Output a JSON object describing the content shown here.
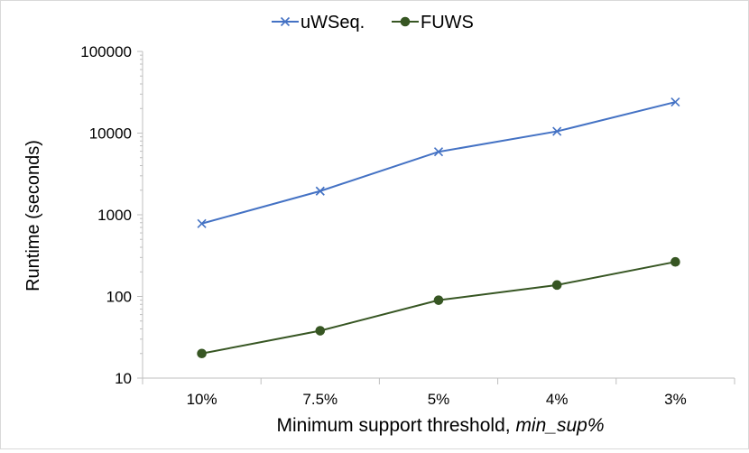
{
  "chart_data": {
    "type": "line",
    "title": "",
    "xlabel_prefix": "Minimum support threshold, ",
    "xlabel_italic": "min_sup%",
    "ylabel": "Runtime (seconds)",
    "yscale": "log",
    "ylim": [
      10,
      100000
    ],
    "yticks": [
      10,
      100,
      1000,
      10000,
      100000
    ],
    "ytick_labels": [
      "10",
      "100",
      "1000",
      "10000",
      "100000"
    ],
    "categories": [
      "10%",
      "7.5%",
      "5%",
      "4%",
      "3%"
    ],
    "legend_position": "top-center",
    "grid": false,
    "series": [
      {
        "name": "uWSeq.",
        "color": "#4472c4",
        "marker": "x",
        "values": [
          780,
          1950,
          5900,
          10500,
          24000
        ]
      },
      {
        "name": "FUWS",
        "color": "#375623",
        "marker": "circle",
        "values": [
          20,
          38,
          90,
          138,
          265
        ]
      }
    ]
  }
}
